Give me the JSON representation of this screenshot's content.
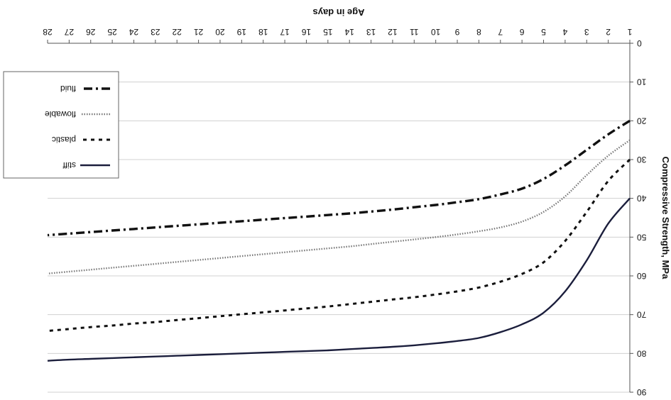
{
  "chart_data": {
    "type": "line",
    "orientation_note": "upside-down",
    "xlabel": "Age in days",
    "ylabel": "Compressive Strength, MPa",
    "xlim": [
      1,
      28
    ],
    "ylim": [
      0,
      90
    ],
    "x_ticks": [
      1,
      2,
      3,
      4,
      5,
      6,
      7,
      8,
      9,
      10,
      11,
      12,
      13,
      14,
      15,
      16,
      17,
      18,
      19,
      20,
      21,
      22,
      23,
      24,
      25,
      26,
      27,
      28
    ],
    "y_ticks": [
      0,
      10,
      20,
      30,
      40,
      50,
      60,
      70,
      80,
      90
    ],
    "grid": "horizontal",
    "legend_position": "top-left",
    "series": [
      {
        "name": "stiff",
        "style": "solid",
        "x": [
          1,
          2,
          3,
          4,
          5,
          6,
          7,
          8,
          9,
          10,
          11,
          12,
          13,
          14,
          15,
          16,
          17,
          18,
          19,
          20,
          21,
          22,
          23,
          24,
          25,
          26,
          27,
          28
        ],
        "values": [
          40,
          46.5,
          56,
          64,
          69.5,
          72.5,
          74.5,
          76,
          76.8,
          77.4,
          77.9,
          78.3,
          78.6,
          78.9,
          79.2,
          79.4,
          79.6,
          79.8,
          80,
          80.2,
          80.4,
          80.6,
          80.8,
          81,
          81.2,
          81.4,
          81.6,
          81.9
        ]
      },
      {
        "name": "plastic",
        "style": "dashed",
        "x": [
          1,
          2,
          3,
          4,
          5,
          6,
          7,
          8,
          9,
          10,
          11,
          12,
          13,
          14,
          15,
          16,
          17,
          18,
          19,
          20,
          21,
          22,
          23,
          24,
          25,
          26,
          27,
          28
        ],
        "values": [
          30,
          35.5,
          43.5,
          51,
          56.5,
          59.5,
          61.5,
          63,
          64,
          64.8,
          65.5,
          66.1,
          66.7,
          67.3,
          67.9,
          68.4,
          68.9,
          69.4,
          69.9,
          70.4,
          70.9,
          71.4,
          71.9,
          72.3,
          72.8,
          73.2,
          73.7,
          74.2
        ]
      },
      {
        "name": "flowable",
        "style": "dotted",
        "x": [
          1,
          2,
          3,
          4,
          5,
          6,
          7,
          8,
          9,
          10,
          11,
          12,
          13,
          14,
          15,
          16,
          17,
          18,
          19,
          20,
          21,
          22,
          23,
          24,
          25,
          26,
          27,
          28
        ],
        "values": [
          25,
          29,
          34,
          39.5,
          43.5,
          46,
          47.5,
          48.5,
          49.3,
          50,
          50.6,
          51.2,
          51.8,
          52.4,
          52.9,
          53.4,
          53.9,
          54.4,
          54.9,
          55.4,
          55.9,
          56.4,
          56.9,
          57.4,
          57.9,
          58.4,
          58.9,
          59.4
        ]
      },
      {
        "name": "fluid",
        "style": "dash-dot",
        "x": [
          1,
          2,
          3,
          4,
          5,
          6,
          7,
          8,
          9,
          10,
          11,
          12,
          13,
          14,
          15,
          16,
          17,
          18,
          19,
          20,
          21,
          22,
          23,
          24,
          25,
          26,
          27,
          28
        ],
        "values": [
          20,
          23.5,
          27.5,
          31.5,
          35,
          37.5,
          39,
          40.2,
          41,
          41.7,
          42.3,
          42.9,
          43.4,
          43.9,
          44.3,
          44.7,
          45.1,
          45.5,
          45.9,
          46.3,
          46.7,
          47.1,
          47.5,
          47.9,
          48.3,
          48.7,
          49.1,
          49.5
        ]
      }
    ]
  }
}
